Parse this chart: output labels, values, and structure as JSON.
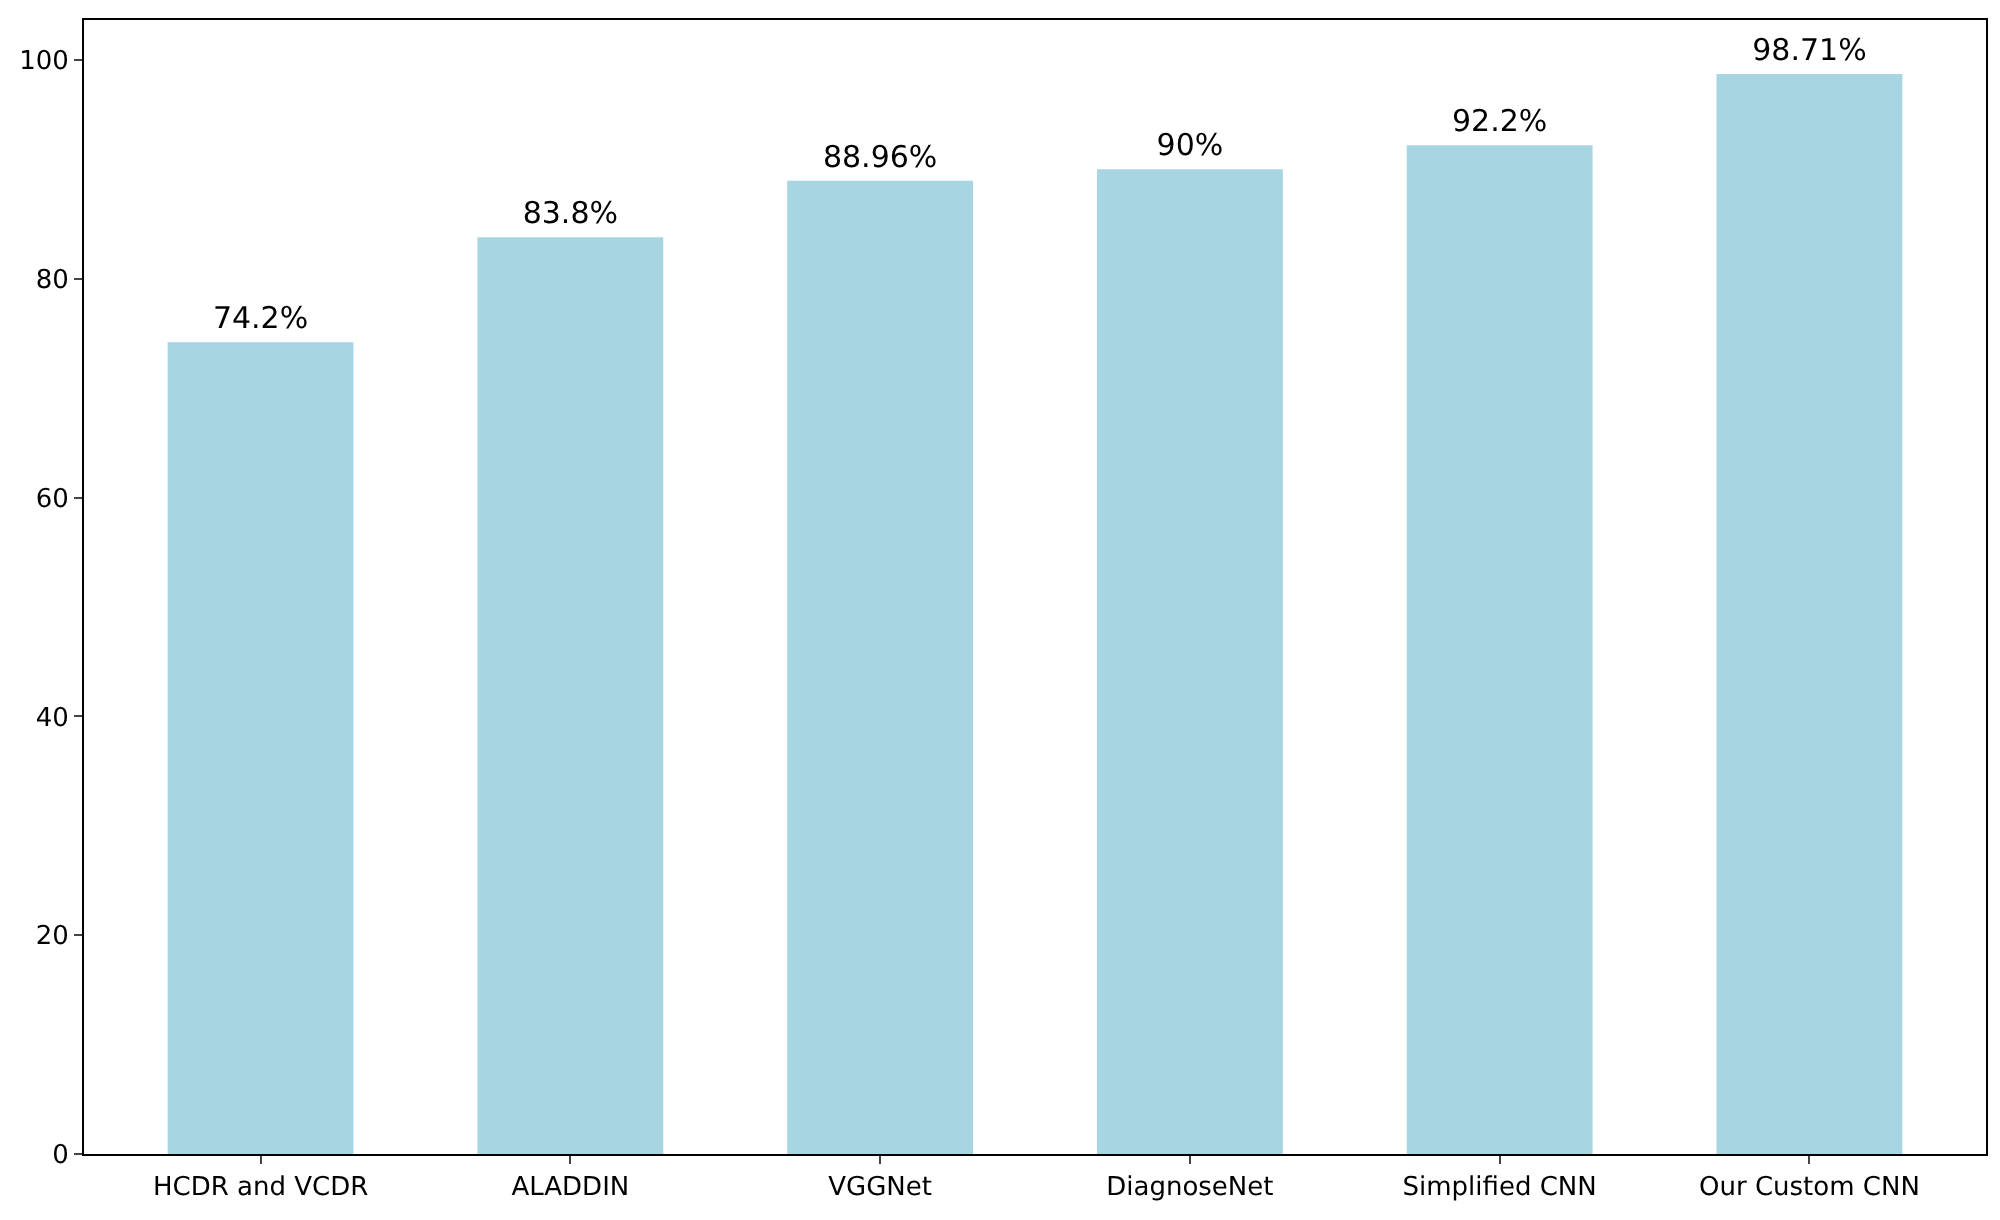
{
  "chart_data": {
    "type": "bar",
    "categories": [
      "HCDR and VCDR",
      "ALADDIN",
      "VGGNet",
      "DiagnoseNet",
      "Simplified CNN",
      "Our Custom CNN"
    ],
    "values": [
      74.2,
      83.8,
      88.96,
      90,
      92.2,
      98.71
    ],
    "value_labels": [
      "74.2%",
      "83.8%",
      "88.96%",
      "90%",
      "92.2%",
      "98.71%"
    ],
    "color": "#a8d5e2",
    "ylim": [
      0,
      103.65
    ],
    "yticks": [
      0,
      20,
      40,
      60,
      80,
      100
    ],
    "grid": false
  }
}
